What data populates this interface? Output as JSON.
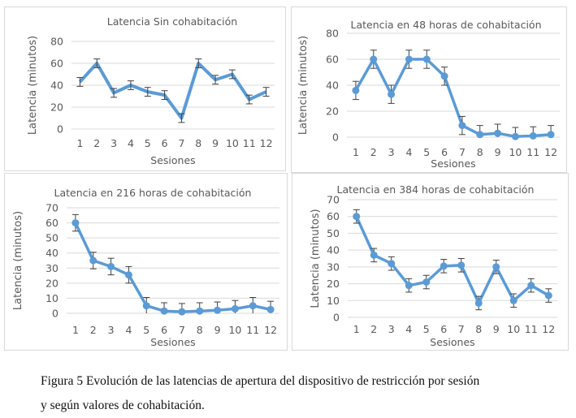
{
  "chart_data": [
    {
      "type": "line",
      "title": "Latencia Sin cohabitación",
      "xlabel": "Sesiones",
      "ylabel": "Latencia (minutos)",
      "categories": [
        "1",
        "2",
        "3",
        "4",
        "5",
        "6",
        "7",
        "8",
        "9",
        "10",
        "11",
        "12"
      ],
      "yticks": [
        "0",
        "20",
        "40",
        "60",
        "80"
      ],
      "ylim": [
        0,
        80
      ],
      "grid": true,
      "markers": false,
      "series": [
        {
          "name": "Latencia",
          "values": [
            43,
            60,
            33,
            40,
            34,
            31,
            10,
            60,
            45,
            50,
            27,
            34
          ],
          "error": [
            4,
            4,
            4,
            4,
            4,
            4,
            4,
            4,
            4,
            4,
            4,
            4
          ]
        }
      ]
    },
    {
      "type": "line",
      "title": "Latencia en 48 horas de cohabitación",
      "xlabel": "Sesiones",
      "ylabel": "Latencia (minutos)",
      "categories": [
        "1",
        "2",
        "3",
        "4",
        "5",
        "6",
        "7",
        "8",
        "9",
        "10",
        "11",
        "12"
      ],
      "yticks": [
        "0",
        "20",
        "40",
        "60",
        "80"
      ],
      "ylim": [
        0,
        80
      ],
      "grid": true,
      "markers": true,
      "series": [
        {
          "name": "Latencia",
          "values": [
            36,
            60,
            33,
            60,
            60,
            47,
            9,
            2,
            3,
            0.5,
            1,
            2
          ],
          "error": [
            7,
            7,
            7,
            7,
            7,
            7,
            7,
            7,
            7,
            7,
            7,
            7
          ]
        }
      ]
    },
    {
      "type": "line",
      "title": "Latencia en 216 horas de cohabitación",
      "xlabel": "Sesiones",
      "ylabel": "Latencia (minutos)",
      "categories": [
        "1",
        "2",
        "3",
        "4",
        "5",
        "6",
        "7",
        "8",
        "9",
        "10",
        "11",
        "12"
      ],
      "yticks": [
        "0",
        "10",
        "20",
        "30",
        "40",
        "50",
        "60",
        "70"
      ],
      "ylim": [
        0,
        70
      ],
      "grid": true,
      "markers": true,
      "series": [
        {
          "name": "Latencia",
          "values": [
            60,
            35,
            31,
            25.5,
            5,
            1.5,
            1,
            1.5,
            2,
            3,
            5,
            2.5
          ],
          "error": [
            5.5,
            5.5,
            5.5,
            5.5,
            5.5,
            5.5,
            5.5,
            5.5,
            5.5,
            5.5,
            5.5,
            5.5
          ]
        }
      ]
    },
    {
      "type": "line",
      "title": "Latencia en 384 horas de cohabitación",
      "xlabel": "Sesiones",
      "ylabel": "Latencia (minutos)",
      "categories": [
        "1",
        "2",
        "3",
        "4",
        "5",
        "6",
        "7",
        "8",
        "9",
        "10",
        "11",
        "12"
      ],
      "yticks": [
        "0",
        "10",
        "20",
        "30",
        "40",
        "50",
        "60",
        "70"
      ],
      "ylim": [
        0,
        70
      ],
      "grid": true,
      "markers": true,
      "series": [
        {
          "name": "Latencia",
          "values": [
            60,
            37,
            32,
            19,
            21,
            30.5,
            31,
            8.5,
            30,
            10,
            19,
            13
          ],
          "error": [
            4,
            4,
            4,
            4,
            4,
            4,
            4,
            4,
            4,
            4,
            4,
            4
          ]
        }
      ]
    }
  ],
  "caption": {
    "line1": "Figura 5 Evolución de las latencias de apertura del dispositivo de restricción por sesión",
    "line2": "y según valores de cohabitación."
  },
  "colors": {
    "line": "#5b9bd5",
    "grid": "#d9d9d9",
    "error_bar": "#404040",
    "text": "#595959"
  }
}
